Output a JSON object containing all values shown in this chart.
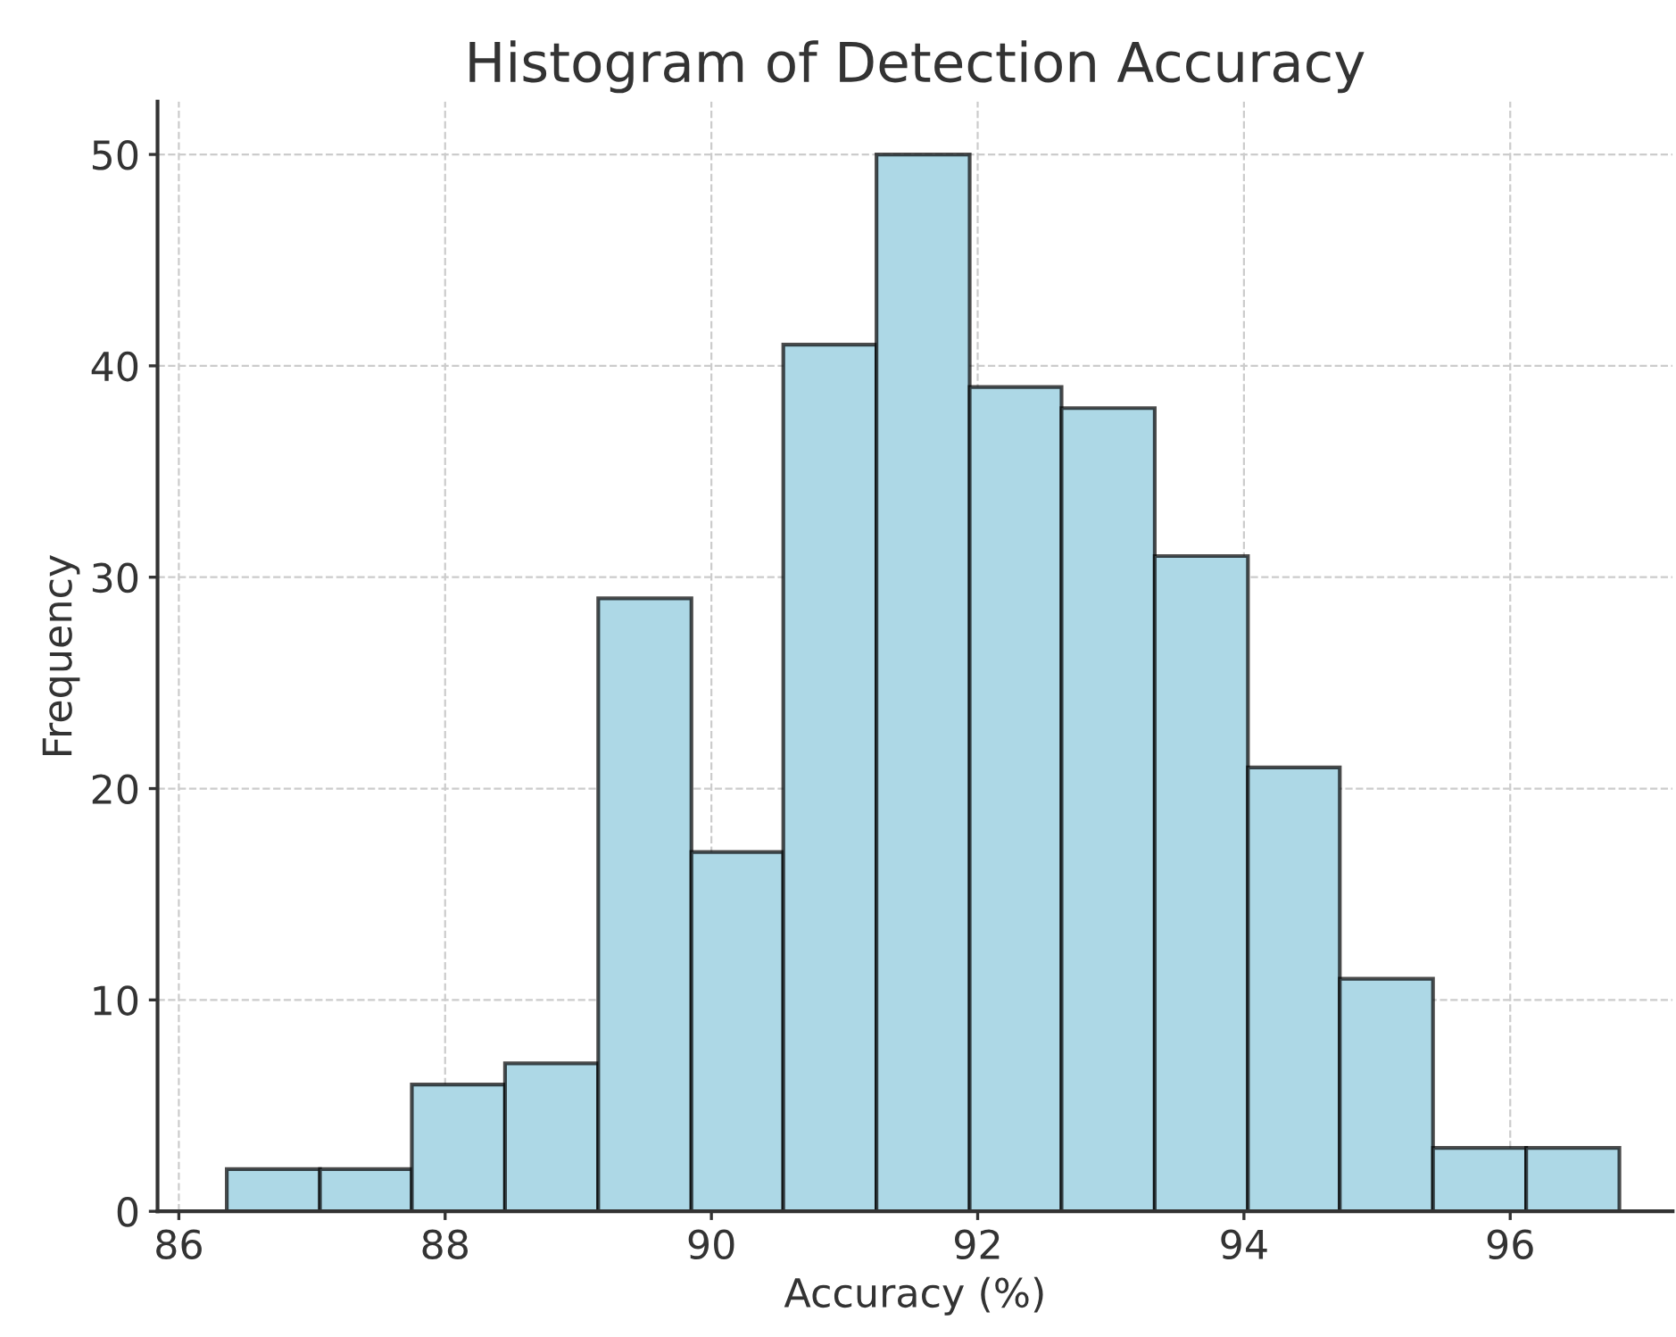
{
  "chart_data": {
    "type": "histogram",
    "title": "Histogram of Detection Accuracy",
    "xlabel": "Accuracy (%)",
    "ylabel": "Frequency",
    "bins": [
      86.36,
      87.06,
      87.75,
      88.45,
      89.15,
      89.85,
      90.54,
      91.24,
      91.94,
      92.63,
      93.33,
      94.03,
      94.72,
      95.42,
      96.12,
      96.82
    ],
    "values": [
      2,
      2,
      6,
      7,
      29,
      17,
      41,
      50,
      39,
      38,
      31,
      21,
      11,
      3,
      3
    ],
    "color": "#add8e6",
    "xlim": [
      85.84,
      97.22
    ],
    "xticks": [
      86,
      88,
      90,
      92,
      94,
      96
    ],
    "ylim": [
      0,
      52.5
    ],
    "yticks": [
      0,
      10,
      20,
      30,
      40,
      50
    ],
    "grid": true
  }
}
